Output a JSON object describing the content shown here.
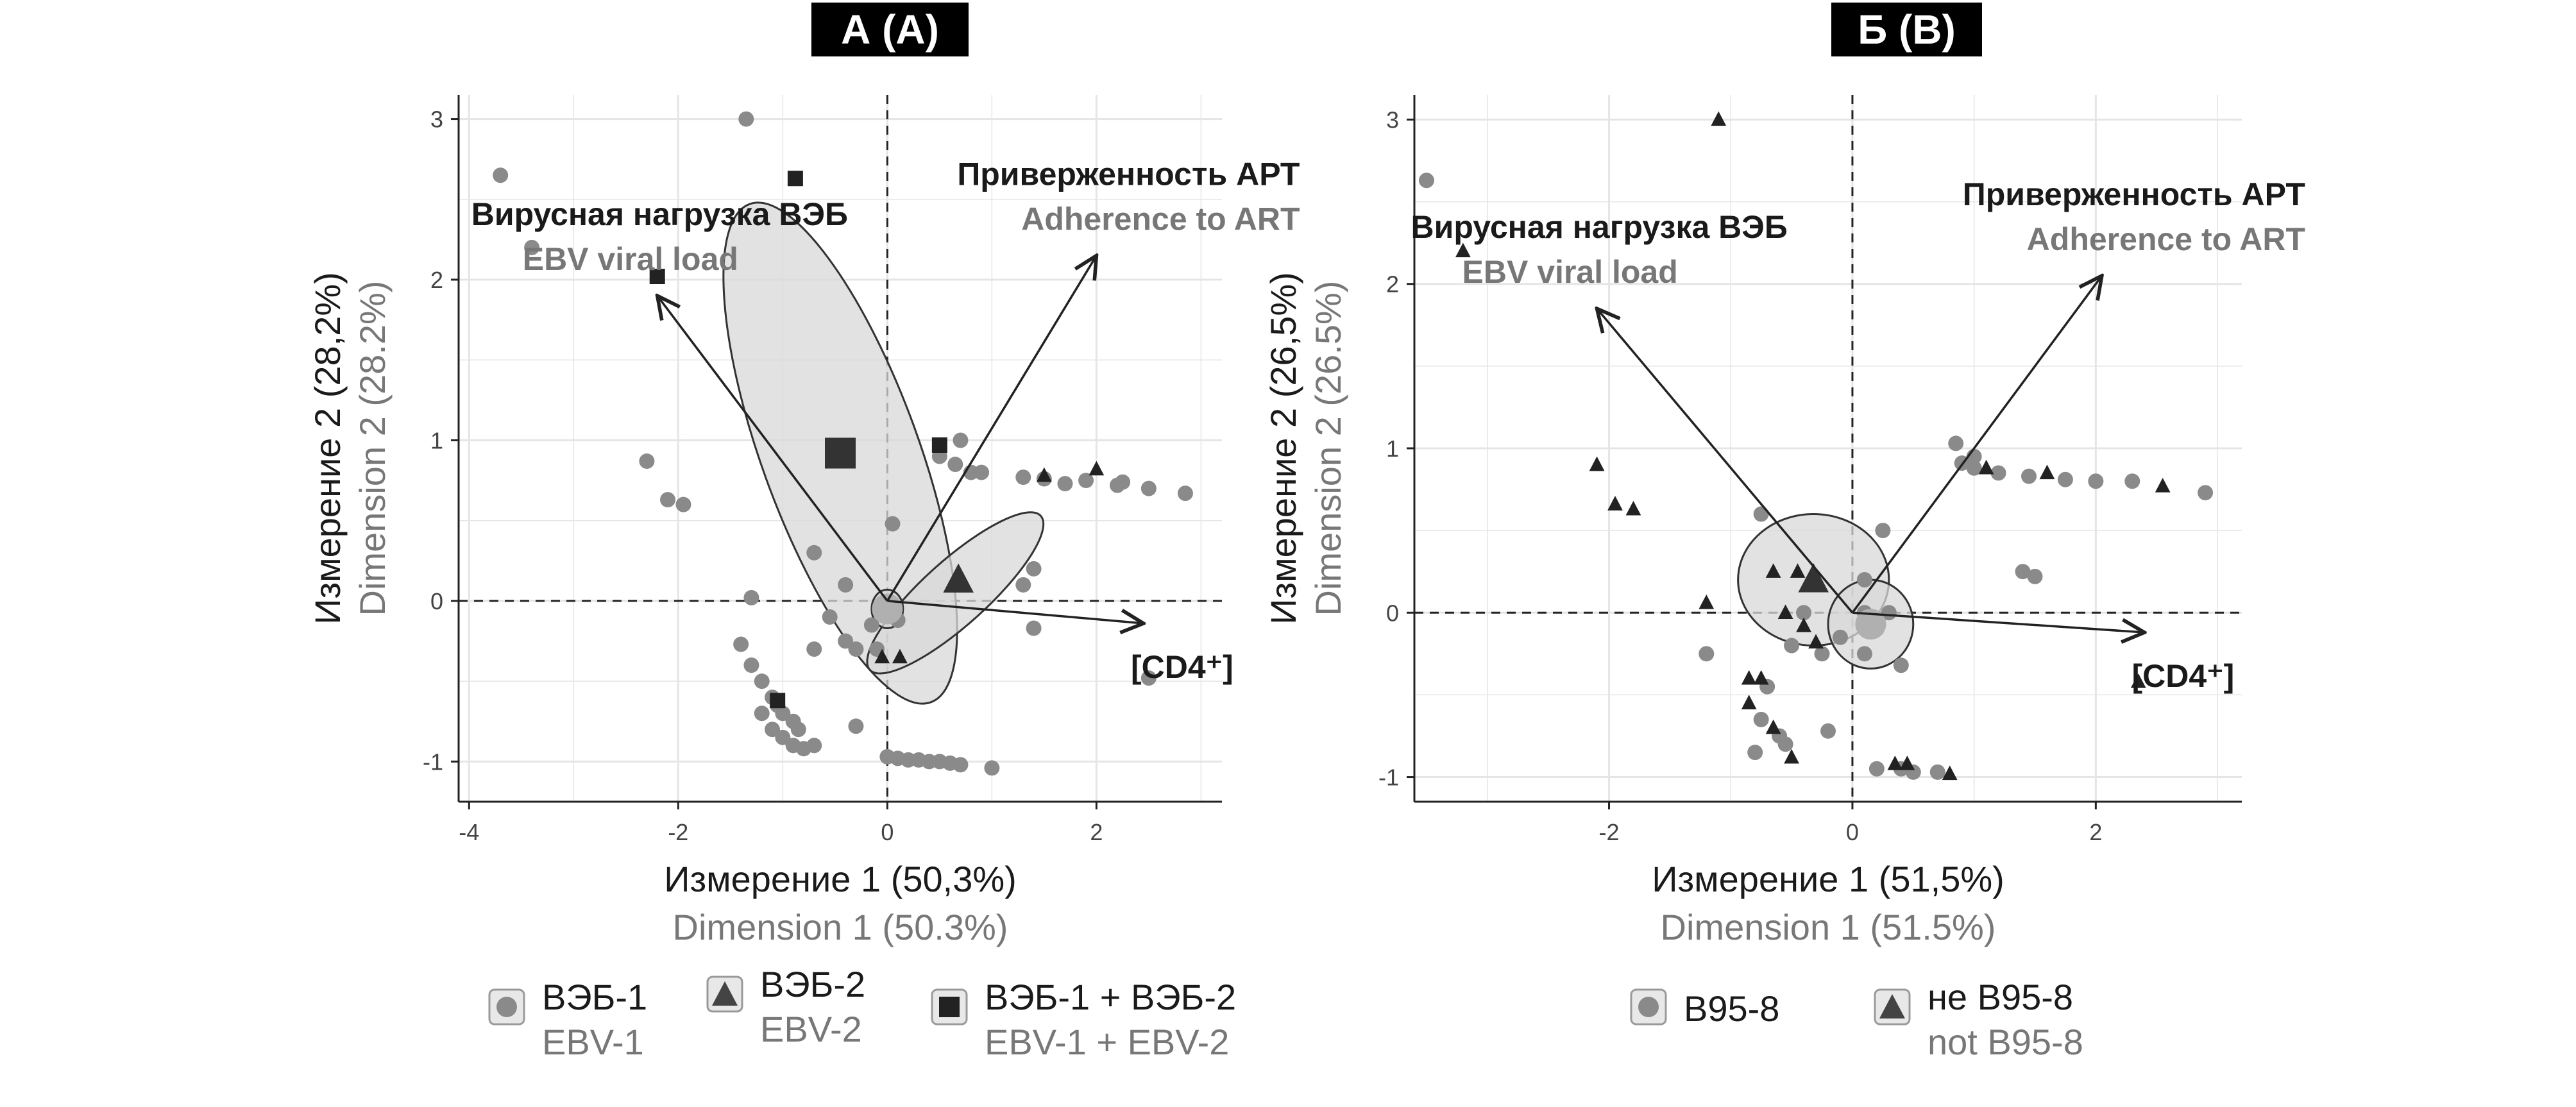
{
  "colors": {
    "ebv1": "#8a8a8a",
    "ebv2": "#222222",
    "both": "#222222",
    "ellipse": "#d8d8d8",
    "grid": "#e5e5e5",
    "en_text": "#777777"
  },
  "chart_data": [
    {
      "type": "scatter",
      "title": "А (A)",
      "xlabel": "Измерение 1 (50,3%)",
      "xlabel_en": "Dimension 1 (50.3%)",
      "ylabel": "Измерение 2 (28,2%)",
      "ylabel_en": "Dimension 2 (28.2%)",
      "xlim": [
        -4.1,
        3.2
      ],
      "ylim": [
        -1.25,
        3.15
      ],
      "xticks": [
        -4,
        -2,
        0,
        2
      ],
      "yticks": [
        -1,
        0,
        1,
        2,
        3
      ],
      "vectors": [
        {
          "name": "Вирусная нагрузка ВЭБ",
          "name_en": "EBV viral load",
          "x": -2.2,
          "y": 1.9
        },
        {
          "name": "Приверженность АРТ",
          "name_en": "Adherence to ART",
          "x": 2.0,
          "y": 2.15
        },
        {
          "name": "[CD4⁺]",
          "name_en": "",
          "x": 2.45,
          "y": -0.14
        }
      ],
      "series": [
        {
          "name": "ВЭБ-1",
          "name_en": "EBV-1",
          "marker": "circle",
          "points": [
            [
              -3.7,
              2.65
            ],
            [
              -1.35,
              3.0
            ],
            [
              -3.4,
              2.2
            ],
            [
              -2.3,
              0.87
            ],
            [
              -2.1,
              0.63
            ],
            [
              -1.95,
              0.6
            ],
            [
              -1.3,
              0.02
            ],
            [
              -1.4,
              -0.27
            ],
            [
              -1.3,
              -0.4
            ],
            [
              -1.2,
              -0.5
            ],
            [
              -1.1,
              -0.6
            ],
            [
              -1.0,
              -0.7
            ],
            [
              -0.9,
              -0.75
            ],
            [
              -1.2,
              -0.7
            ],
            [
              -1.1,
              -0.8
            ],
            [
              -1.0,
              -0.85
            ],
            [
              -0.9,
              -0.9
            ],
            [
              -0.8,
              -0.92
            ],
            [
              -1.05,
              -0.65
            ],
            [
              -0.85,
              -0.8
            ],
            [
              -0.7,
              -0.9
            ],
            [
              -0.3,
              -0.78
            ],
            [
              -0.7,
              -0.3
            ],
            [
              -0.55,
              -0.1
            ],
            [
              -0.4,
              -0.25
            ],
            [
              -0.3,
              -0.3
            ],
            [
              -0.15,
              -0.15
            ],
            [
              -0.1,
              -0.3
            ],
            [
              0.05,
              0.48
            ],
            [
              0.05,
              -0.08
            ],
            [
              0.1,
              -0.12
            ],
            [
              -0.7,
              0.3
            ],
            [
              -0.4,
              0.1
            ],
            [
              0.0,
              -0.97
            ],
            [
              0.1,
              -0.98
            ],
            [
              0.2,
              -0.99
            ],
            [
              0.3,
              -0.99
            ],
            [
              0.4,
              -1.0
            ],
            [
              0.5,
              -1.0
            ],
            [
              0.6,
              -1.01
            ],
            [
              0.7,
              -1.02
            ],
            [
              1.0,
              -1.04
            ],
            [
              0.5,
              0.9
            ],
            [
              0.7,
              1.0
            ],
            [
              0.65,
              0.85
            ],
            [
              0.8,
              0.8
            ],
            [
              0.9,
              0.8
            ],
            [
              1.3,
              0.77
            ],
            [
              1.5,
              0.76
            ],
            [
              1.7,
              0.73
            ],
            [
              1.9,
              0.75
            ],
            [
              2.2,
              0.72
            ],
            [
              2.25,
              0.74
            ],
            [
              2.5,
              0.7
            ],
            [
              2.85,
              0.67
            ],
            [
              1.4,
              0.2
            ],
            [
              1.4,
              -0.17
            ],
            [
              1.3,
              0.1
            ],
            [
              2.5,
              -0.48
            ]
          ]
        },
        {
          "name": "ВЭБ-2",
          "name_en": "EBV-2",
          "marker": "triangle",
          "points": [
            [
              1.5,
              0.78
            ],
            [
              2.0,
              0.82
            ],
            [
              0.12,
              -0.35
            ],
            [
              -0.05,
              -0.35
            ]
          ]
        },
        {
          "name": "ВЭБ-1 + ВЭБ-2",
          "name_en": "EBV-1 + EBV-2",
          "marker": "square",
          "points": [
            [
              -0.88,
              2.63
            ],
            [
              -2.2,
              2.02
            ],
            [
              0.5,
              0.97
            ],
            [
              -1.05,
              -0.62
            ]
          ]
        }
      ],
      "centroids": [
        {
          "series": "ВЭБ-1",
          "x": 0.0,
          "y": -0.05
        },
        {
          "series": "ВЭБ-2",
          "x": 0.68,
          "y": 0.13
        },
        {
          "series": "ВЭБ-1 + ВЭБ-2",
          "x": -0.45,
          "y": 0.92
        }
      ],
      "ellipses": [
        {
          "series": "ВЭБ-1 + ВЭБ-2",
          "cx": -0.45,
          "cy": 0.92,
          "rx": 0.75,
          "ry": 1.65,
          "angle_deg": -20
        },
        {
          "series": "ВЭБ-2",
          "cx": 0.65,
          "cy": 0.05,
          "rx": 1.1,
          "ry": 0.2,
          "angle_deg": -42
        },
        {
          "series": "ВЭБ-1",
          "cx": 0.0,
          "cy": -0.05,
          "rx": 0.15,
          "ry": 0.12,
          "angle_deg": 0
        }
      ]
    },
    {
      "type": "scatter",
      "title": "Б (B)",
      "xlabel": "Измерение 1 (51,5%)",
      "xlabel_en": "Dimension 1 (51.5%)",
      "ylabel": "Измерение 2 (26,5%)",
      "ylabel_en": "Dimension 2 (26.5%)",
      "xlim": [
        -3.6,
        3.2
      ],
      "ylim": [
        -1.15,
        3.15
      ],
      "xticks": [
        -2,
        0,
        2
      ],
      "yticks": [
        -1,
        0,
        1,
        2,
        3
      ],
      "vectors": [
        {
          "name": "Вирусная нагрузка ВЭБ",
          "name_en": "EBV viral load",
          "x": -2.1,
          "y": 1.85
        },
        {
          "name": "Приверженность АРТ",
          "name_en": "Adherence to ART",
          "x": 2.05,
          "y": 2.05
        },
        {
          "name": "[CD4⁺]",
          "name_en": "",
          "x": 2.4,
          "y": -0.12
        }
      ],
      "series": [
        {
          "name": "B95-8",
          "name_en": "",
          "marker": "circle",
          "points": [
            [
              -3.5,
              2.63
            ],
            [
              -0.75,
              0.6
            ],
            [
              -1.2,
              -0.25
            ],
            [
              -0.7,
              -0.45
            ],
            [
              -0.75,
              -0.65
            ],
            [
              -0.6,
              -0.75
            ],
            [
              -0.8,
              -0.85
            ],
            [
              -0.55,
              -0.8
            ],
            [
              -0.2,
              -0.72
            ],
            [
              -0.5,
              -0.2
            ],
            [
              -0.25,
              -0.25
            ],
            [
              -0.1,
              -0.15
            ],
            [
              0.1,
              -0.25
            ],
            [
              0.2,
              -0.1
            ],
            [
              0.3,
              0.0
            ],
            [
              0.4,
              -0.32
            ],
            [
              0.25,
              0.5
            ],
            [
              0.1,
              0.2
            ],
            [
              0.2,
              -0.95
            ],
            [
              0.4,
              -0.95
            ],
            [
              0.5,
              -0.97
            ],
            [
              0.7,
              -0.97
            ],
            [
              0.9,
              0.91
            ],
            [
              1.0,
              0.88
            ],
            [
              0.85,
              1.03
            ],
            [
              1.0,
              0.95
            ],
            [
              1.2,
              0.85
            ],
            [
              1.45,
              0.83
            ],
            [
              1.75,
              0.81
            ],
            [
              2.0,
              0.8
            ],
            [
              2.3,
              0.8
            ],
            [
              2.9,
              0.73
            ],
            [
              1.4,
              0.25
            ],
            [
              1.5,
              0.22
            ],
            [
              0.1,
              0.0
            ],
            [
              -0.4,
              0.0
            ]
          ]
        },
        {
          "name": "не B95-8",
          "name_en": "not B95-8",
          "marker": "triangle",
          "points": [
            [
              -1.1,
              3.0
            ],
            [
              -3.2,
              2.2
            ],
            [
              -2.1,
              0.9
            ],
            [
              -1.95,
              0.66
            ],
            [
              -1.8,
              0.63
            ],
            [
              -1.2,
              0.06
            ],
            [
              -0.65,
              0.25
            ],
            [
              -0.45,
              0.25
            ],
            [
              -0.55,
              0.0
            ],
            [
              -0.4,
              -0.08
            ],
            [
              -0.3,
              -0.18
            ],
            [
              -0.85,
              -0.4
            ],
            [
              -0.75,
              -0.4
            ],
            [
              -0.85,
              -0.55
            ],
            [
              -0.65,
              -0.7
            ],
            [
              -0.5,
              -0.88
            ],
            [
              0.35,
              -0.92
            ],
            [
              0.45,
              -0.92
            ],
            [
              0.8,
              -0.98
            ],
            [
              1.1,
              0.88
            ],
            [
              1.6,
              0.85
            ],
            [
              2.55,
              0.77
            ],
            [
              2.35,
              -0.42
            ]
          ]
        }
      ],
      "centroids": [
        {
          "series": "B95-8",
          "x": 0.15,
          "y": -0.07
        },
        {
          "series": "не B95-8",
          "x": -0.32,
          "y": 0.2
        }
      ],
      "ellipses": [
        {
          "series": "не B95-8",
          "cx": -0.32,
          "cy": 0.2,
          "rx": 0.62,
          "ry": 0.4,
          "angle_deg": 0
        },
        {
          "series": "B95-8",
          "cx": 0.15,
          "cy": -0.07,
          "rx": 0.35,
          "ry": 0.27,
          "angle_deg": 0
        }
      ]
    }
  ],
  "legendA": {
    "item1": {
      "ru": "ВЭБ-1",
      "en": "EBV-1"
    },
    "item2": {
      "ru": "ВЭБ-2",
      "en": "EBV-2"
    },
    "item3": {
      "ru": "ВЭБ-1 + ВЭБ-2",
      "en": "EBV-1 + EBV-2"
    }
  },
  "legendB": {
    "item1": {
      "ru": "B95-8"
    },
    "item2": {
      "ru": "не B95-8",
      "en": "not B95-8"
    }
  }
}
